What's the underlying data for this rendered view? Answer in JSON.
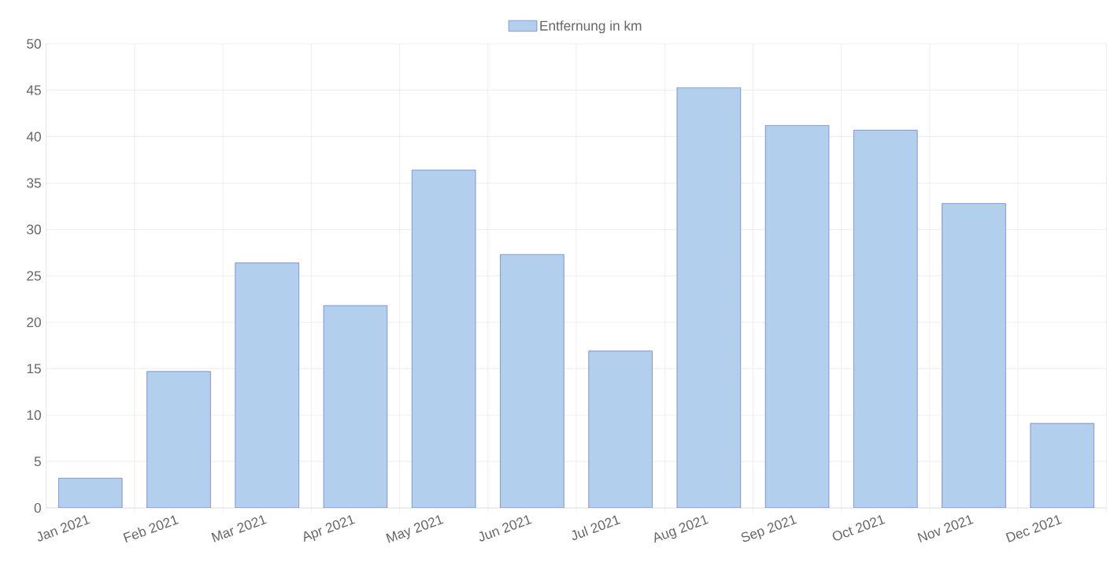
{
  "chart_data": {
    "type": "bar",
    "categories": [
      "Jan 2021",
      "Feb 2021",
      "Mar 2021",
      "Apr 2021",
      "May 2021",
      "Jun 2021",
      "Jul 2021",
      "Aug 2021",
      "Sep 2021",
      "Oct 2021",
      "Nov 2021",
      "Dec 2021"
    ],
    "series": [
      {
        "name": "Entfernung in km",
        "color": "#b3cfee",
        "values": [
          3.2,
          14.7,
          26.4,
          21.8,
          36.4,
          27.3,
          16.9,
          45.3,
          41.2,
          40.7,
          32.8,
          9.1
        ]
      }
    ],
    "ylim": [
      0,
      50
    ],
    "yticks": [
      0,
      5,
      10,
      15,
      20,
      25,
      30,
      35,
      40,
      45,
      50
    ],
    "grid": true,
    "legend": "top"
  }
}
